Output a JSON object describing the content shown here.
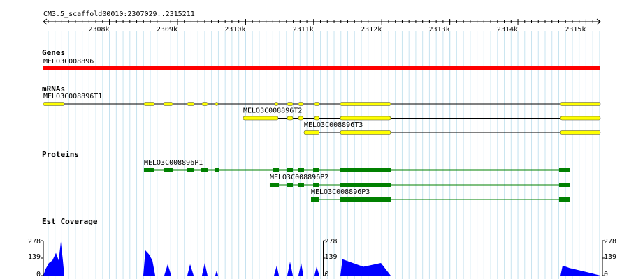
{
  "ruler": {
    "title": "CM3.5_scaffold00010:2307029..2315211",
    "range": [
      2307029,
      2315211
    ],
    "ticks": [
      {
        "value": 2308000,
        "label": "2308k"
      },
      {
        "value": 2309000,
        "label": "2309k"
      },
      {
        "value": 2310000,
        "label": "2310k"
      },
      {
        "value": 2311000,
        "label": "2311k"
      },
      {
        "value": 2312000,
        "label": "2312k"
      },
      {
        "value": 2313000,
        "label": "2313k"
      },
      {
        "value": 2314000,
        "label": "2314k"
      },
      {
        "value": 2315000,
        "label": "2315k"
      }
    ]
  },
  "tracks": {
    "genes": {
      "title": "Genes",
      "color": "#ff0000",
      "features": [
        {
          "name": "MELO3C008896",
          "start": 2307029,
          "end": 2315211
        }
      ]
    },
    "mrnas": {
      "title": "mRNAs",
      "color": "#ffff00",
      "features": [
        {
          "name": "MELO3C008896T1",
          "start": 2307029,
          "end": 2315211,
          "parts": [
            [
              2307029,
              2307337
            ],
            [
              2308507,
              2308661
            ],
            [
              2308795,
              2308928
            ],
            [
              2309144,
              2309246
            ],
            [
              2309359,
              2309442
            ],
            [
              2309554,
              2309596
            ],
            [
              2310427,
              2310478
            ],
            [
              2310612,
              2310694
            ],
            [
              2310776,
              2310848
            ],
            [
              2311012,
              2311084
            ],
            [
              2311392,
              2312131
            ],
            [
              2314626,
              2315211
            ]
          ]
        },
        {
          "name": "MELO3C008896T2",
          "start": 2309965,
          "end": 2315211,
          "parts": [
            [
              2309965,
              2310478
            ],
            [
              2310612,
              2310694
            ],
            [
              2310776,
              2310848
            ],
            [
              2311012,
              2311084
            ],
            [
              2311392,
              2312131
            ],
            [
              2314626,
              2315211
            ]
          ]
        },
        {
          "name": "MELO3C008896T3",
          "start": 2310858,
          "end": 2315211,
          "parts": [
            [
              2310858,
              2311084
            ],
            [
              2311392,
              2312131
            ],
            [
              2314626,
              2315211
            ]
          ]
        }
      ]
    },
    "proteins": {
      "title": "Proteins",
      "color": "#008000",
      "features": [
        {
          "name": "MELO3C008896P1",
          "start": 2308507,
          "end": 2314769,
          "parts": [
            [
              2308507,
              2308661
            ],
            [
              2308795,
              2308928
            ],
            [
              2309134,
              2309246
            ],
            [
              2309349,
              2309442
            ],
            [
              2309544,
              2309606
            ],
            [
              2310406,
              2310489
            ],
            [
              2310602,
              2310694
            ],
            [
              2310766,
              2310858
            ],
            [
              2310992,
              2311084
            ],
            [
              2311382,
              2312131
            ],
            [
              2314605,
              2314769
            ]
          ]
        },
        {
          "name": "MELO3C008896P2",
          "start": 2310355,
          "end": 2314769,
          "parts": [
            [
              2310355,
              2310489
            ],
            [
              2310602,
              2310694
            ],
            [
              2310766,
              2310858
            ],
            [
              2310992,
              2311084
            ],
            [
              2311382,
              2312131
            ],
            [
              2314605,
              2314769
            ]
          ]
        },
        {
          "name": "MELO3C008896P3",
          "start": 2310961,
          "end": 2314769,
          "parts": [
            [
              2310961,
              2311084
            ],
            [
              2311382,
              2312131
            ],
            [
              2314605,
              2314769
            ]
          ]
        }
      ]
    },
    "coverage": {
      "title": "Est Coverage",
      "color": "#0000ff",
      "ylim": [
        0,
        278
      ],
      "yticks": [
        0,
        139,
        278
      ],
      "x": [
        2307029,
        2307060,
        2307111,
        2307162,
        2307214,
        2307255,
        2307286,
        2307316,
        2307337,
        2308497,
        2308528,
        2308579,
        2308631,
        2308672,
        2308805,
        2308856,
        2308908,
        2309144,
        2309185,
        2309237,
        2309359,
        2309400,
        2309441,
        2309554,
        2309575,
        2309596,
        2310417,
        2310458,
        2310489,
        2310612,
        2310653,
        2310694,
        2310776,
        2310817,
        2310848,
        2311012,
        2311043,
        2311084,
        2311392,
        2311423,
        2311526,
        2311731,
        2311988,
        2312131,
        2314626,
        2314657,
        2314760,
        2314913,
        2315067,
        2315211
      ],
      "values": [
        0,
        50,
        100,
        120,
        180,
        120,
        270,
        120,
        0,
        0,
        200,
        170,
        120,
        0,
        0,
        90,
        0,
        0,
        90,
        0,
        0,
        100,
        0,
        0,
        40,
        0,
        0,
        80,
        0,
        0,
        110,
        0,
        0,
        100,
        0,
        0,
        70,
        0,
        0,
        130,
        110,
        70,
        100,
        0,
        0,
        80,
        60,
        40,
        20,
        0
      ]
    }
  }
}
